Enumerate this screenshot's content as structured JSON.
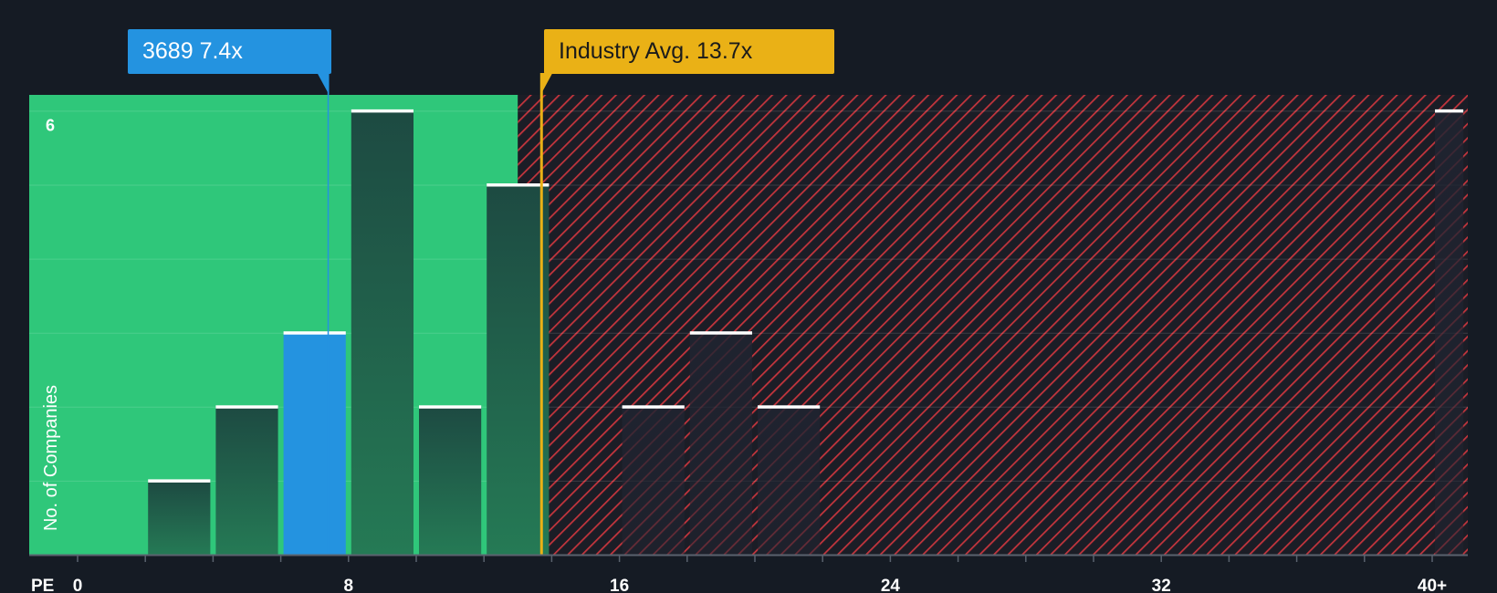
{
  "company_callout": {
    "ticker": "3689",
    "value": "7.4x"
  },
  "industry_callout": {
    "label": "Industry Avg.",
    "value": "13.7x"
  },
  "colors": {
    "background": "#151b24",
    "undervalued_zone": "#2fc77a",
    "company_bar": "#2493e0",
    "industry_line": "#eab116",
    "overvalued_hatch": "#c4353d"
  },
  "chart_data": {
    "type": "bar",
    "title": "",
    "xlabel": "PE",
    "ylabel": "No. of Companies",
    "xlim": [
      0,
      40
    ],
    "ylim": [
      0,
      6
    ],
    "x_ticks": [
      {
        "value": 0,
        "label": "0"
      },
      {
        "value": 8,
        "label": "8"
      },
      {
        "value": 16,
        "label": "16"
      },
      {
        "value": 24,
        "label": "24"
      },
      {
        "value": 32,
        "label": "32"
      },
      {
        "value": 40,
        "label": "40+"
      }
    ],
    "y_ticks": [
      {
        "value": 6,
        "label": "6"
      }
    ],
    "bins": [
      {
        "start": 2,
        "end": 4,
        "count": 1
      },
      {
        "start": 4,
        "end": 6,
        "count": 2
      },
      {
        "start": 6,
        "end": 8,
        "count": 3,
        "highlight": true
      },
      {
        "start": 8,
        "end": 10,
        "count": 6
      },
      {
        "start": 10,
        "end": 12,
        "count": 2
      },
      {
        "start": 12,
        "end": 14,
        "count": 5
      },
      {
        "start": 16,
        "end": 18,
        "count": 2
      },
      {
        "start": 18,
        "end": 20,
        "count": 3
      },
      {
        "start": 20,
        "end": 22,
        "count": 2
      },
      {
        "start": 40,
        "end": 41,
        "count": 6
      }
    ],
    "company_pe": 7.4,
    "industry_avg_pe": 13.7,
    "fair_zone_end": 13.0,
    "grid": true
  }
}
